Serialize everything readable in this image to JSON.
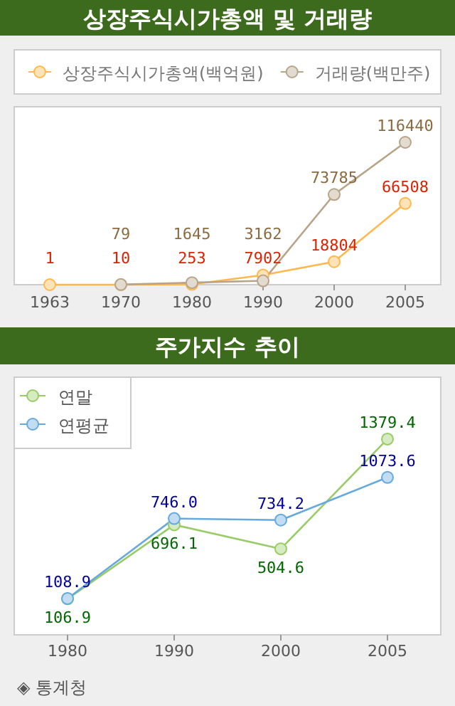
{
  "chart_data": [
    {
      "type": "line",
      "title": "상장주식시가총액 및 거래량",
      "categories": [
        "1963",
        "1970",
        "1980",
        "1990",
        "2000",
        "2005"
      ],
      "marker": "circle",
      "legend": "top",
      "grid": false,
      "data_labels": true,
      "series": [
        {
          "name": "상장주식시가총액(백억원)",
          "color": "#ffb84d",
          "values": [
            1,
            10,
            253,
            7902,
            18804,
            66508
          ]
        },
        {
          "name": "거래량(백만주)",
          "color": "#b8a48a",
          "values": [
            null,
            79,
            1645,
            3162,
            73785,
            116440
          ]
        }
      ]
    },
    {
      "type": "line",
      "title": "주가지수 추이",
      "categories": [
        "1980",
        "1990",
        "2000",
        "2005"
      ],
      "marker": "circle",
      "legend": "top left",
      "grid": false,
      "annotations": [
        "◈ 통계청"
      ],
      "series": [
        {
          "name": "연말",
          "color": "#99cc66",
          "values": [
            106.9,
            696.1,
            504.6,
            1379.4
          ],
          "value_labels": [
            "106.9",
            "696.1",
            "504.6",
            "1379.4"
          ]
        },
        {
          "name": "연평균",
          "color": "#66aadd",
          "values": [
            108.9,
            746.0,
            734.2,
            1073.6
          ],
          "value_labels": [
            "108.9",
            "746.0",
            "734.2",
            "1073.6"
          ]
        }
      ]
    }
  ]
}
